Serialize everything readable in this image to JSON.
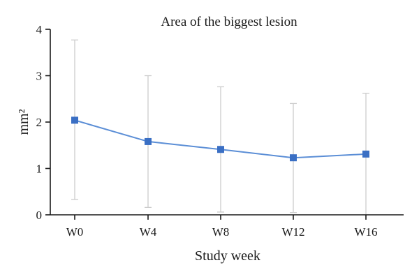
{
  "chart_data": {
    "type": "line",
    "title": "Area of the biggest lesion",
    "xlabel": "Study week",
    "ylabel": "mm²",
    "categories": [
      "W0",
      "W4",
      "W8",
      "W12",
      "W16"
    ],
    "series": [
      {
        "values": [
          2.04,
          1.58,
          1.41,
          1.23,
          1.31
        ],
        "error_low": [
          0.33,
          0.16,
          0.06,
          0.05,
          0.0
        ],
        "error_high": [
          3.77,
          3.0,
          2.76,
          2.4,
          2.62
        ]
      }
    ],
    "ylim": [
      0,
      4
    ],
    "yticks": [
      "0",
      "1",
      "2",
      "3",
      "4"
    ],
    "grid": false,
    "colors": {
      "line": "#5b8ed6",
      "marker": "#3a6fc4",
      "error_bar": "#cccccc",
      "axis": "#1a1a1a"
    }
  }
}
